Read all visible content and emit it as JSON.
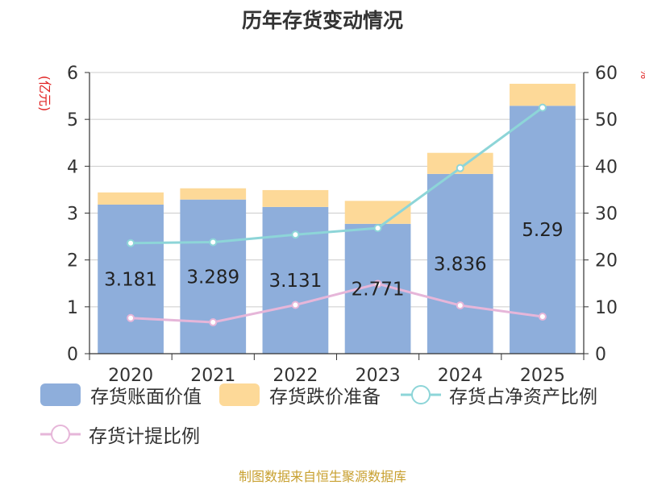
{
  "title": "历年存货变动情况",
  "source": "制图数据来自恒生聚源数据库",
  "colors": {
    "book_value": "#8eaedb",
    "impairment": "#fdd998",
    "ratio_net_assets": "#8dd5d8",
    "provision_ratio": "#e6b6d9",
    "unit_left": "#e02020"
  },
  "chart_data": {
    "type": "bar",
    "title": "历年存货变动情况",
    "categories": [
      "2020",
      "2021",
      "2022",
      "2023",
      "2024",
      "2025"
    ],
    "left_axis": {
      "unit_label": "(亿元)",
      "ylim": [
        0,
        6
      ],
      "ticks": [
        "0",
        "1",
        "2",
        "3",
        "4",
        "5",
        "6"
      ]
    },
    "right_axis": {
      "unit_label": "%",
      "ylim": [
        0,
        60
      ],
      "ticks": [
        "0",
        "10",
        "20",
        "30",
        "40",
        "50",
        "60"
      ]
    },
    "stacked": true,
    "series": [
      {
        "name": "存货账面价值",
        "kind": "bar",
        "axis": "left",
        "values": [
          3.181,
          3.289,
          3.131,
          2.771,
          3.836,
          5.29
        ],
        "labels": [
          "3.181",
          "3.289",
          "3.131",
          "2.771",
          "3.836",
          "5.29"
        ]
      },
      {
        "name": "存货跌价准备",
        "kind": "bar",
        "axis": "left",
        "values": [
          0.26,
          0.24,
          0.36,
          0.49,
          0.45,
          0.47
        ]
      },
      {
        "name": "存货占净资产比例",
        "kind": "line",
        "axis": "right",
        "values": [
          23.6,
          23.8,
          25.4,
          26.8,
          39.6,
          52.5
        ]
      },
      {
        "name": "存货计提比例",
        "kind": "line",
        "axis": "right",
        "values": [
          7.6,
          6.7,
          10.4,
          14.9,
          10.3,
          7.9
        ]
      }
    ],
    "grid": true
  }
}
